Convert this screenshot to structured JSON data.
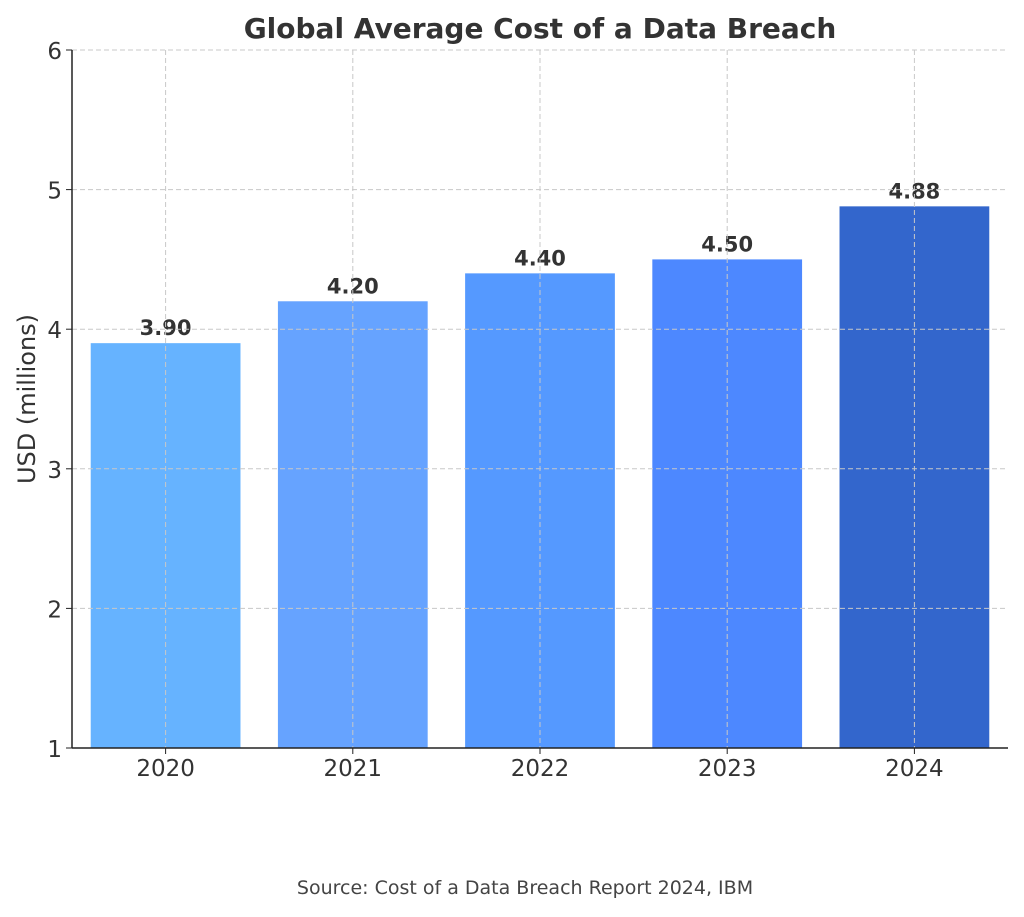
{
  "chart_data": {
    "type": "bar",
    "title": "Global Average Cost of a Data Breach",
    "xlabel": "",
    "ylabel": "USD (millions)",
    "categories": [
      "2020",
      "2021",
      "2022",
      "2023",
      "2024"
    ],
    "values": [
      3.9,
      4.2,
      4.4,
      4.5,
      4.88
    ],
    "data_labels": [
      "3.90",
      "4.20",
      "4.40",
      "4.50",
      "4.88"
    ],
    "colors": [
      "#66b3ff",
      "#66a3ff",
      "#5599ff",
      "#4d88ff",
      "#3366cc"
    ],
    "ylim": [
      1,
      6
    ],
    "yticks": [
      "1",
      "2",
      "3",
      "4",
      "5",
      "6"
    ],
    "grid": true,
    "footnote": "Source: Cost of a Data Breach Report 2024, IBM"
  }
}
